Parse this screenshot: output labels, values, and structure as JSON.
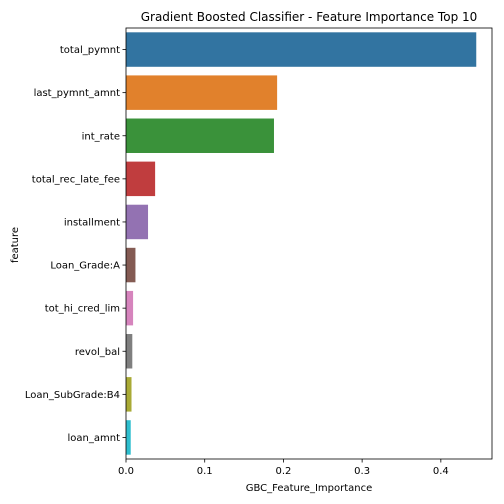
{
  "chart_data": {
    "type": "bar",
    "orientation": "horizontal",
    "title": "Gradient Boosted Classifier - Feature Importance Top 10",
    "xlabel": "GBC_Feature_Importance",
    "ylabel": "feature",
    "xlim": [
      0,
      0.465
    ],
    "xticks": [
      0,
      0.1,
      0.2,
      0.3,
      0.4
    ],
    "xtick_labels": [
      "0.0",
      "0.1",
      "0.2",
      "0.3",
      "0.4"
    ],
    "grid": false,
    "categories": [
      "total_pymnt",
      "last_pymnt_amnt",
      "int_rate",
      "total_rec_late_fee",
      "installment",
      "Loan_Grade:A",
      "tot_hi_cred_lim",
      "revol_bal",
      "Loan_SubGrade:B4",
      "loan_amnt"
    ],
    "values": [
      0.445,
      0.192,
      0.188,
      0.037,
      0.028,
      0.012,
      0.009,
      0.008,
      0.007,
      0.006
    ],
    "colors": [
      "#3274a1",
      "#e1812c",
      "#3a923a",
      "#c03d3e",
      "#9372b2",
      "#845b53",
      "#d684bd",
      "#7f7f7f",
      "#a9aa35",
      "#2ebece"
    ]
  }
}
